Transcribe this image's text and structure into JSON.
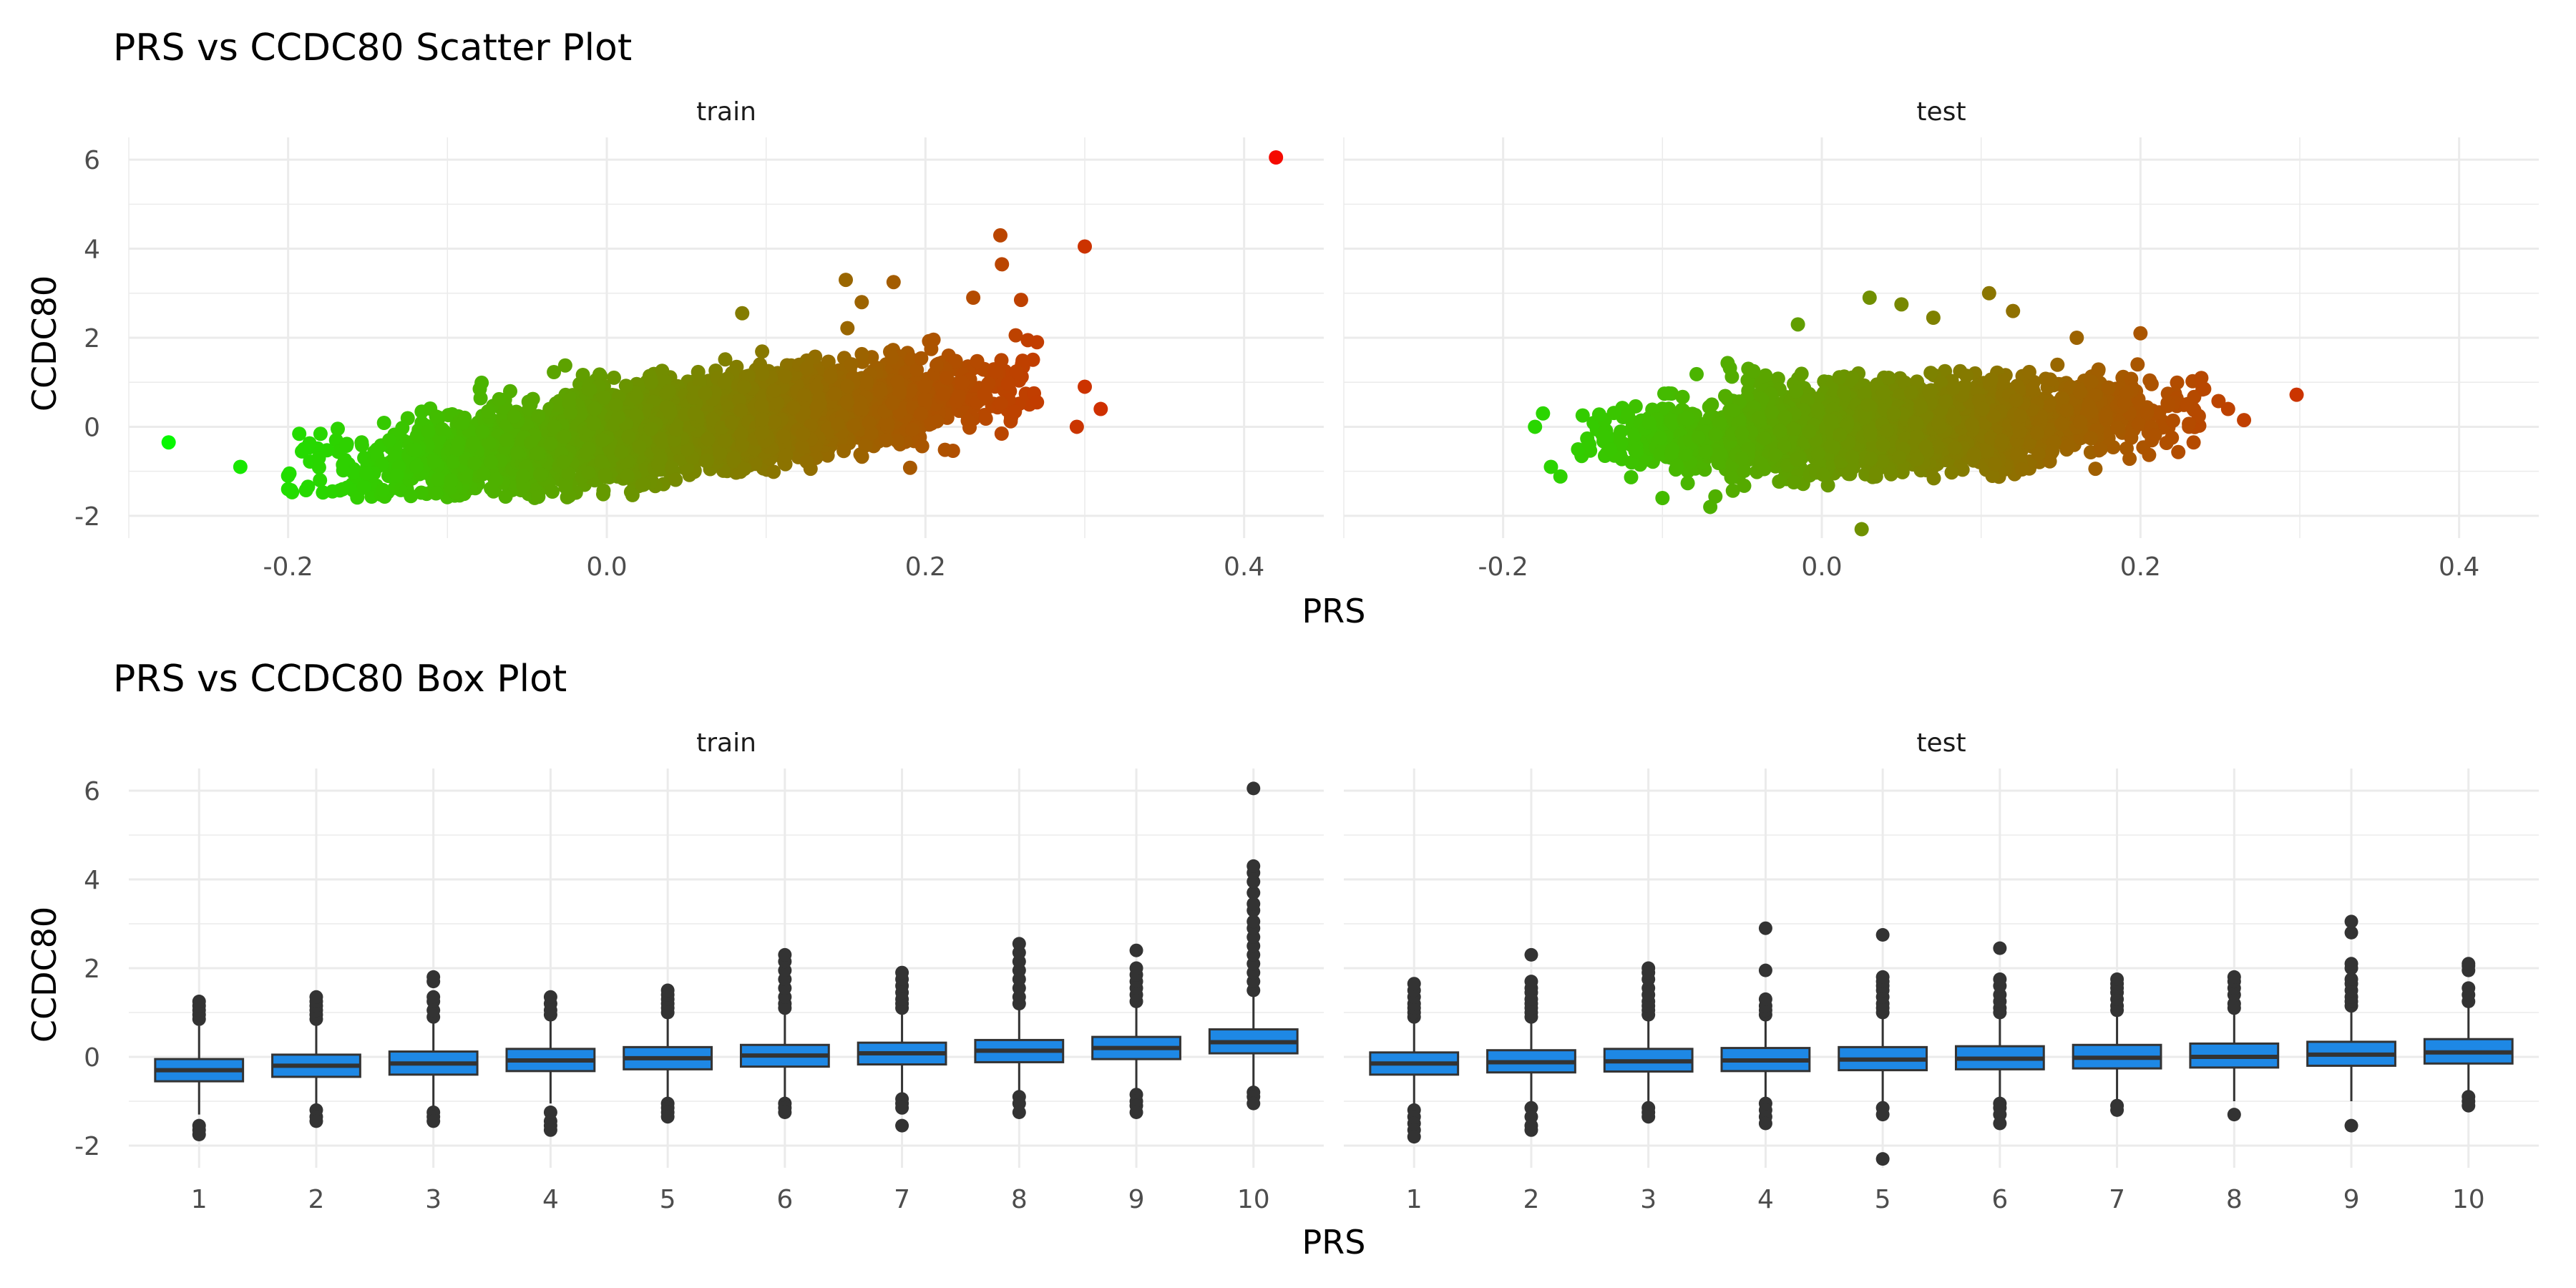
{
  "chart_data": [
    {
      "type": "scatter",
      "title": "PRS vs CCDC80 Scatter Plot",
      "xlabel": "PRS",
      "ylabel": "CCDC80",
      "xlim": [
        -0.3,
        0.45
      ],
      "ylim": [
        -2.5,
        6.5
      ],
      "x_ticks": [
        -0.2,
        0.0,
        0.2,
        0.4
      ],
      "x_tick_labels": [
        "-0.2",
        "0.0",
        "0.2",
        "0.4"
      ],
      "y_ticks": [
        -2,
        0,
        2,
        4,
        6
      ],
      "y_tick_labels": [
        "-2",
        "0",
        "2",
        "4",
        "6"
      ],
      "grid": true,
      "color_scale": {
        "low": "#00ff00",
        "high": "#ff0000"
      },
      "facets": [
        {
          "name": "train",
          "cloud": {
            "x_mean": 0.05,
            "x_sd": 0.085,
            "x_range": [
              -0.2,
              0.27
            ],
            "slope": 4.3,
            "intercept": -0.2,
            "y_sd": 0.45,
            "n": 5200
          },
          "points": [
            [
              -0.275,
              -0.35
            ],
            [
              -0.23,
              -0.9
            ],
            [
              -0.2,
              -1.1
            ],
            [
              -0.2,
              -1.4
            ],
            [
              -0.19,
              -0.5
            ],
            [
              -0.18,
              -1.2
            ],
            [
              0.42,
              6.05
            ],
            [
              0.3,
              4.05
            ],
            [
              0.247,
              4.3
            ],
            [
              0.248,
              3.65
            ],
            [
              0.15,
              3.3
            ],
            [
              0.18,
              3.25
            ],
            [
              0.16,
              2.8
            ],
            [
              0.085,
              2.55
            ],
            [
              0.31,
              0.4
            ],
            [
              0.3,
              0.9
            ],
            [
              0.295,
              0.0
            ],
            [
              0.27,
              0.55
            ],
            [
              0.26,
              2.85
            ],
            [
              0.23,
              2.9
            ],
            [
              0.27,
              1.9
            ]
          ]
        },
        {
          "name": "test",
          "cloud": {
            "x_mean": 0.045,
            "x_sd": 0.075,
            "x_range": [
              -0.17,
              0.25
            ],
            "slope": 1.8,
            "intercept": -0.05,
            "y_sd": 0.42,
            "n": 3600
          },
          "points": [
            [
              -0.175,
              0.3
            ],
            [
              -0.18,
              0.0
            ],
            [
              -0.17,
              -0.9
            ],
            [
              0.298,
              0.72
            ],
            [
              0.265,
              0.15
            ],
            [
              0.255,
              0.4
            ],
            [
              0.24,
              0.85
            ],
            [
              0.2,
              2.1
            ],
            [
              0.16,
              2.0
            ],
            [
              0.105,
              3.0
            ],
            [
              0.03,
              2.9
            ],
            [
              0.05,
              2.75
            ],
            [
              -0.015,
              2.3
            ],
            [
              0.025,
              -2.3
            ],
            [
              -0.07,
              -1.8
            ],
            [
              -0.1,
              -1.6
            ],
            [
              0.12,
              2.6
            ],
            [
              0.07,
              2.45
            ]
          ]
        }
      ]
    },
    {
      "type": "box",
      "title": "PRS vs CCDC80 Box Plot",
      "xlabel": "PRS",
      "ylabel": "CCDC80",
      "categories": [
        "1",
        "2",
        "3",
        "4",
        "5",
        "6",
        "7",
        "8",
        "9",
        "10"
      ],
      "ylim": [
        -2.5,
        6.5
      ],
      "y_ticks": [
        -2,
        0,
        2,
        4,
        6
      ],
      "y_tick_labels": [
        "-2",
        "0",
        "2",
        "4",
        "6"
      ],
      "grid": true,
      "box_color": "#1e88e5",
      "facets": [
        {
          "name": "train",
          "boxes": [
            {
              "q1": -0.55,
              "median": -0.3,
              "q3": -0.05,
              "whisker_low": -1.3,
              "whisker_high": 0.7
            },
            {
              "q1": -0.45,
              "median": -0.2,
              "q3": 0.05,
              "whisker_low": -1.15,
              "whisker_high": 0.75
            },
            {
              "q1": -0.4,
              "median": -0.15,
              "q3": 0.12,
              "whisker_low": -1.15,
              "whisker_high": 0.85
            },
            {
              "q1": -0.32,
              "median": -0.08,
              "q3": 0.18,
              "whisker_low": -1.05,
              "whisker_high": 0.9
            },
            {
              "q1": -0.28,
              "median": -0.03,
              "q3": 0.22,
              "whisker_low": -1.0,
              "whisker_high": 0.95
            },
            {
              "q1": -0.22,
              "median": 0.03,
              "q3": 0.27,
              "whisker_low": -0.95,
              "whisker_high": 1.02
            },
            {
              "q1": -0.17,
              "median": 0.08,
              "q3": 0.32,
              "whisker_low": -0.9,
              "whisker_high": 1.08
            },
            {
              "q1": -0.12,
              "median": 0.14,
              "q3": 0.38,
              "whisker_low": -0.85,
              "whisker_high": 1.15
            },
            {
              "q1": -0.05,
              "median": 0.2,
              "q3": 0.45,
              "whisker_low": -0.8,
              "whisker_high": 1.2
            },
            {
              "q1": 0.08,
              "median": 0.33,
              "q3": 0.62,
              "whisker_low": -0.75,
              "whisker_high": 1.45
            }
          ],
          "outliers": [
            [
              -1.55,
              -1.65,
              -1.75,
              0.85,
              0.95,
              1.05,
              1.15,
              1.25
            ],
            [
              -1.2,
              -1.35,
              -1.45,
              0.85,
              0.95,
              1.05,
              1.15,
              1.25,
              1.35
            ],
            [
              -1.25,
              -1.35,
              -1.45,
              0.9,
              1.05,
              1.25,
              1.35,
              1.7,
              1.8
            ],
            [
              -1.25,
              -1.45,
              -1.55,
              -1.65,
              0.95,
              1.05,
              1.2,
              1.35
            ],
            [
              -1.05,
              -1.15,
              -1.25,
              -1.35,
              1.0,
              1.1,
              1.2,
              1.3,
              1.4,
              1.5
            ],
            [
              -1.05,
              -1.15,
              -1.25,
              1.1,
              1.2,
              1.35,
              1.55,
              1.75,
              1.95,
              2.15,
              2.3
            ],
            [
              -0.95,
              -1.05,
              -1.15,
              -1.55,
              1.1,
              1.2,
              1.3,
              1.45,
              1.6,
              1.75,
              1.9
            ],
            [
              -0.9,
              -1.05,
              -1.25,
              1.2,
              1.35,
              1.55,
              1.75,
              1.95,
              2.15,
              2.35,
              2.55
            ],
            [
              -0.85,
              -1.0,
              -1.1,
              -1.25,
              1.25,
              1.4,
              1.55,
              1.7,
              1.85,
              2.0,
              2.4
            ],
            [
              -0.8,
              -0.9,
              -1.05,
              1.5,
              1.7,
              1.9,
              2.1,
              2.3,
              2.5,
              2.7,
              2.9,
              3.05,
              3.3,
              3.45,
              3.7,
              3.95,
              4.15,
              4.3,
              6.05
            ]
          ]
        },
        {
          "name": "test",
          "boxes": [
            {
              "q1": -0.4,
              "median": -0.15,
              "q3": 0.1,
              "whisker_low": -1.1,
              "whisker_high": 0.85
            },
            {
              "q1": -0.35,
              "median": -0.12,
              "q3": 0.15,
              "whisker_low": -1.05,
              "whisker_high": 0.85
            },
            {
              "q1": -0.33,
              "median": -0.1,
              "q3": 0.18,
              "whisker_low": -1.05,
              "whisker_high": 0.9
            },
            {
              "q1": -0.32,
              "median": -0.08,
              "q3": 0.2,
              "whisker_low": -1.0,
              "whisker_high": 0.92
            },
            {
              "q1": -0.3,
              "median": -0.06,
              "q3": 0.22,
              "whisker_low": -1.0,
              "whisker_high": 0.95
            },
            {
              "q1": -0.28,
              "median": -0.04,
              "q3": 0.24,
              "whisker_low": -1.0,
              "whisker_high": 0.97
            },
            {
              "q1": -0.26,
              "median": -0.02,
              "q3": 0.27,
              "whisker_low": -1.0,
              "whisker_high": 1.0
            },
            {
              "q1": -0.24,
              "median": 0.0,
              "q3": 0.3,
              "whisker_low": -1.0,
              "whisker_high": 1.02
            },
            {
              "q1": -0.2,
              "median": 0.05,
              "q3": 0.34,
              "whisker_low": -1.0,
              "whisker_high": 1.07
            },
            {
              "q1": -0.15,
              "median": 0.1,
              "q3": 0.4,
              "whisker_low": -0.85,
              "whisker_high": 1.2
            }
          ],
          "outliers": [
            [
              -1.2,
              -1.35,
              -1.5,
              -1.65,
              -1.8,
              0.9,
              1.0,
              1.1,
              1.2,
              1.35,
              1.5,
              1.65
            ],
            [
              -1.15,
              -1.35,
              -1.55,
              -1.65,
              0.9,
              1.0,
              1.1,
              1.2,
              1.3,
              1.45,
              1.55,
              1.7,
              2.3
            ],
            [
              -1.15,
              -1.25,
              -1.35,
              0.95,
              1.05,
              1.15,
              1.25,
              1.4,
              1.55,
              1.75,
              1.9,
              2.0
            ],
            [
              -1.05,
              -1.2,
              -1.35,
              -1.5,
              0.95,
              1.05,
              1.15,
              1.3,
              1.95,
              2.9
            ],
            [
              -1.15,
              -1.3,
              -2.3,
              1.0,
              1.1,
              1.2,
              1.35,
              1.5,
              1.6,
              1.7,
              1.8,
              2.75
            ],
            [
              -1.05,
              -1.15,
              -1.3,
              -1.5,
              1.0,
              1.1,
              1.25,
              1.4,
              1.6,
              1.75,
              2.45
            ],
            [
              -1.1,
              -1.2,
              1.05,
              1.15,
              1.3,
              1.45,
              1.55,
              1.65,
              1.75
            ],
            [
              -1.3,
              1.1,
              1.2,
              1.4,
              1.55,
              1.7,
              1.8
            ],
            [
              -1.55,
              1.15,
              1.25,
              1.35,
              1.5,
              1.65,
              1.75,
              2.0,
              2.1,
              2.8,
              3.05
            ],
            [
              -0.9,
              -1.0,
              -1.1,
              1.25,
              1.4,
              1.55,
              1.95,
              2.05,
              2.1
            ]
          ]
        }
      ]
    }
  ]
}
